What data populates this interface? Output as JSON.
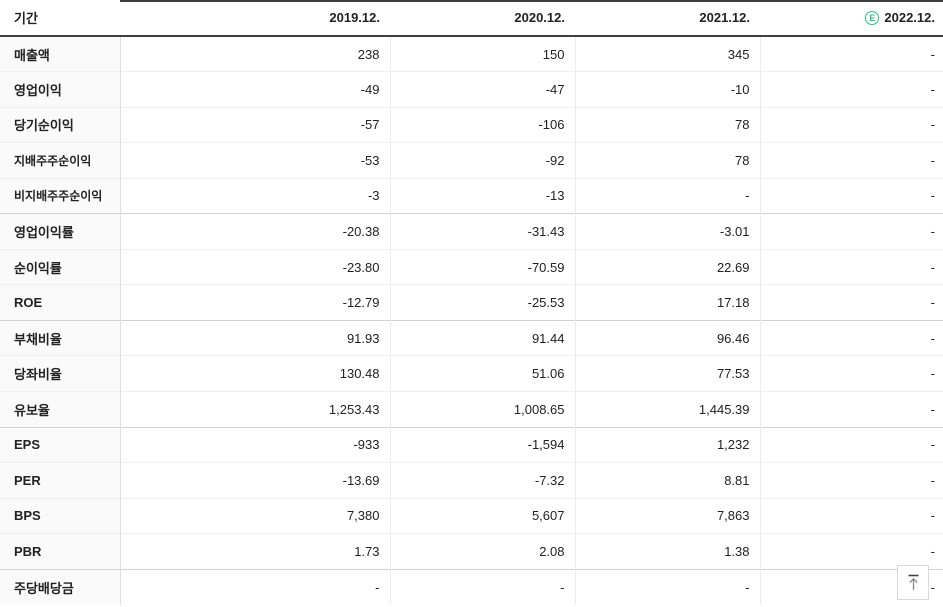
{
  "table": {
    "header": {
      "period_label": "기간",
      "columns": [
        "2019.12.",
        "2020.12.",
        "2021.12.",
        "2022.12."
      ],
      "estimate_icon_letter": "E",
      "estimate_column_index": 3
    },
    "rows": [
      {
        "label": "매출액",
        "values": [
          "238",
          "150",
          "345",
          "-"
        ]
      },
      {
        "label": "영업이익",
        "values": [
          "-49",
          "-47",
          "-10",
          "-"
        ]
      },
      {
        "label": "당기순이익",
        "values": [
          "-57",
          "-106",
          "78",
          "-"
        ]
      },
      {
        "label": "지배주주순이익",
        "values": [
          "-53",
          "-92",
          "78",
          "-"
        ],
        "small": true
      },
      {
        "label": "비지배주주순이익",
        "values": [
          "-3",
          "-13",
          "-",
          "-"
        ],
        "small": true
      },
      {
        "label": "영업이익률",
        "values": [
          "-20.38",
          "-31.43",
          "-3.01",
          "-"
        ],
        "group_start": true
      },
      {
        "label": "순이익률",
        "values": [
          "-23.80",
          "-70.59",
          "22.69",
          "-"
        ]
      },
      {
        "label": "ROE",
        "values": [
          "-12.79",
          "-25.53",
          "17.18",
          "-"
        ]
      },
      {
        "label": "부채비율",
        "values": [
          "91.93",
          "91.44",
          "96.46",
          "-"
        ],
        "group_start": true
      },
      {
        "label": "당좌비율",
        "values": [
          "130.48",
          "51.06",
          "77.53",
          "-"
        ]
      },
      {
        "label": "유보율",
        "values": [
          "1,253.43",
          "1,008.65",
          "1,445.39",
          "-"
        ]
      },
      {
        "label": "EPS",
        "values": [
          "-933",
          "-1,594",
          "1,232",
          "-"
        ],
        "group_start": true
      },
      {
        "label": "PER",
        "values": [
          "-13.69",
          "-7.32",
          "8.81",
          "-"
        ]
      },
      {
        "label": "BPS",
        "values": [
          "7,380",
          "5,607",
          "7,863",
          "-"
        ]
      },
      {
        "label": "PBR",
        "values": [
          "1.73",
          "2.08",
          "1.38",
          "-"
        ]
      },
      {
        "label": "주당배당금",
        "values": [
          "-",
          "-",
          "-",
          "-"
        ],
        "group_start": true
      }
    ],
    "colors": {
      "negative_value": "#4a7fd1",
      "estimate_green": "#2fc088",
      "header_rule": "#3e3e3e"
    }
  },
  "scroll_top_button": {
    "icon": "scroll-to-top-arrow"
  }
}
